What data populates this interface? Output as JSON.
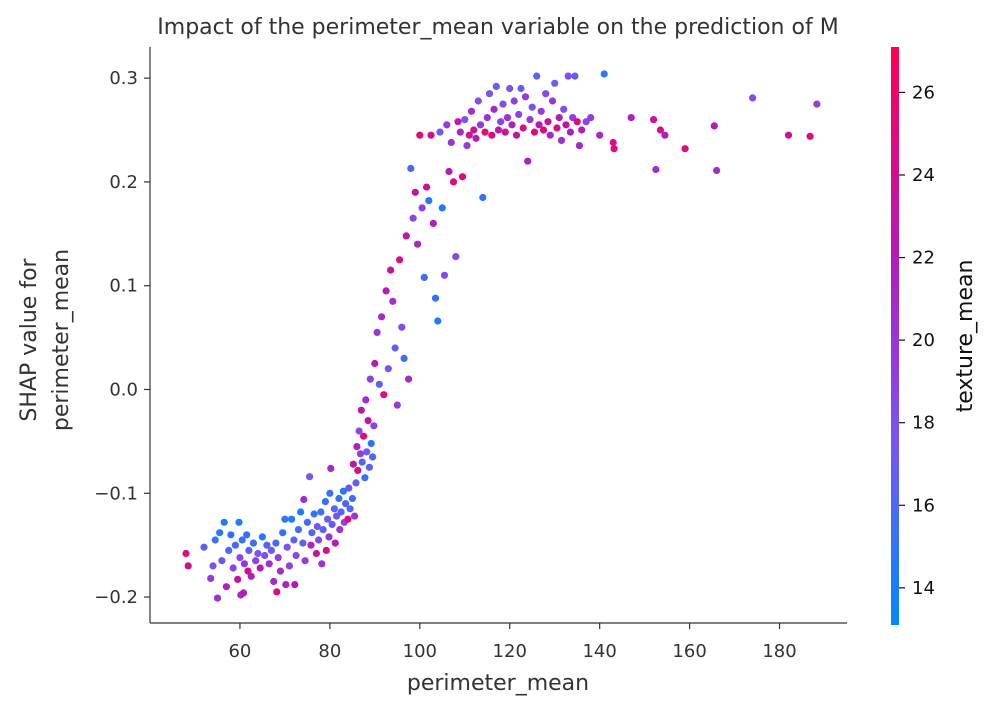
{
  "chart_data": {
    "type": "scatter",
    "title": "Impact of the perimeter_mean variable on the prediction of M",
    "xlabel": "perimeter_mean",
    "ylabel_lines": [
      "SHAP value for",
      "perimeter_mean"
    ],
    "xlim": [
      40,
      195
    ],
    "ylim": [
      -0.225,
      0.33
    ],
    "xticks": [
      60,
      80,
      100,
      120,
      140,
      160,
      180
    ],
    "xtick_labels": [
      "60",
      "80",
      "100",
      "120",
      "140",
      "160",
      "180"
    ],
    "yticks": [
      -0.2,
      -0.1,
      0.0,
      0.1,
      0.2,
      0.3
    ],
    "ytick_labels": [
      "−0.2",
      "−0.1",
      "0.0",
      "0.1",
      "0.2",
      "0.3"
    ],
    "grid": false,
    "colorbar": {
      "label": "texture_mean",
      "range": [
        13.1,
        27.1
      ],
      "ticks": [
        14,
        16,
        18,
        20,
        22,
        24,
        26
      ],
      "tick_labels": [
        "14",
        "16",
        "18",
        "20",
        "22",
        "24",
        "26"
      ],
      "colormap": [
        "#008afb",
        "#7c52f3",
        "#b818b4",
        "#ff0051"
      ]
    },
    "points": [
      [
        48.0,
        -0.158,
        24.8
      ],
      [
        48.5,
        -0.17,
        24.2
      ],
      [
        52.0,
        -0.152,
        16.5
      ],
      [
        53.5,
        -0.182,
        19.5
      ],
      [
        54.0,
        -0.17,
        17.8
      ],
      [
        54.5,
        -0.145,
        15.2
      ],
      [
        55.0,
        -0.201,
        20.2
      ],
      [
        55.5,
        -0.138,
        14.2
      ],
      [
        56.0,
        -0.165,
        17.0
      ],
      [
        56.5,
        -0.128,
        14.5
      ],
      [
        57.0,
        -0.19,
        21.5
      ],
      [
        57.5,
        -0.155,
        16.0
      ],
      [
        58.0,
        -0.14,
        14.8
      ],
      [
        58.5,
        -0.172,
        19.0
      ],
      [
        59.0,
        -0.15,
        15.6
      ],
      [
        59.5,
        -0.183,
        23.8
      ],
      [
        59.8,
        -0.128,
        13.9
      ],
      [
        60.0,
        -0.162,
        18.4
      ],
      [
        60.2,
        -0.198,
        21.0
      ],
      [
        60.5,
        -0.145,
        15.0
      ],
      [
        60.8,
        -0.196,
        22.0
      ],
      [
        61.0,
        -0.168,
        19.8
      ],
      [
        61.5,
        -0.14,
        15.5
      ],
      [
        61.8,
        -0.175,
        24.0
      ],
      [
        62.0,
        -0.155,
        16.8
      ],
      [
        62.5,
        -0.18,
        21.8
      ],
      [
        63.0,
        -0.148,
        15.2
      ],
      [
        63.5,
        -0.165,
        18.9
      ],
      [
        64.0,
        -0.158,
        17.5
      ],
      [
        64.5,
        -0.172,
        22.5
      ],
      [
        65.0,
        -0.142,
        14.6
      ],
      [
        65.5,
        -0.16,
        18.0
      ],
      [
        66.0,
        -0.15,
        16.2
      ],
      [
        66.5,
        -0.168,
        20.5
      ],
      [
        67.0,
        -0.155,
        17.2
      ],
      [
        67.5,
        -0.185,
        21.2
      ],
      [
        68.0,
        -0.148,
        15.8
      ],
      [
        68.2,
        -0.195,
        24.5
      ],
      [
        68.5,
        -0.162,
        19.2
      ],
      [
        69.0,
        -0.175,
        20.8
      ],
      [
        69.5,
        -0.138,
        14.8
      ],
      [
        70.0,
        -0.125,
        15.0
      ],
      [
        70.2,
        -0.188,
        21.6
      ],
      [
        70.5,
        -0.152,
        17.8
      ],
      [
        71.0,
        -0.17,
        19.0
      ],
      [
        71.5,
        -0.125,
        14.2
      ],
      [
        72.0,
        -0.145,
        16.5
      ],
      [
        72.2,
        -0.188,
        22.8
      ],
      [
        72.5,
        -0.16,
        18.6
      ],
      [
        73.0,
        -0.135,
        15.5
      ],
      [
        73.5,
        -0.118,
        14.0
      ],
      [
        74.0,
        -0.148,
        16.9
      ],
      [
        74.2,
        -0.106,
        20.6
      ],
      [
        74.5,
        -0.165,
        19.5
      ],
      [
        75.0,
        -0.128,
        15.7
      ],
      [
        75.5,
        -0.084,
        17.6
      ],
      [
        75.8,
        -0.15,
        21.4
      ],
      [
        76.0,
        -0.138,
        16.0
      ],
      [
        76.5,
        -0.12,
        14.8
      ],
      [
        77.0,
        -0.158,
        23.6
      ],
      [
        77.2,
        -0.132,
        17.0
      ],
      [
        77.5,
        -0.145,
        18.5
      ],
      [
        78.0,
        -0.118,
        15.3
      ],
      [
        78.2,
        -0.168,
        20.4
      ],
      [
        78.5,
        -0.135,
        16.6
      ],
      [
        79.0,
        -0.108,
        14.9
      ],
      [
        79.2,
        -0.155,
        24.2
      ],
      [
        79.5,
        -0.125,
        17.2
      ],
      [
        79.8,
        -0.142,
        19.9
      ],
      [
        80.0,
        -0.1,
        15.4
      ],
      [
        80.2,
        -0.076,
        21.0
      ],
      [
        80.5,
        -0.13,
        16.8
      ],
      [
        81.0,
        -0.115,
        15.9
      ],
      [
        81.2,
        -0.148,
        22.2
      ],
      [
        81.5,
        -0.122,
        17.6
      ],
      [
        82.0,
        -0.105,
        15.1
      ],
      [
        82.2,
        -0.135,
        20.2
      ],
      [
        82.5,
        -0.118,
        16.4
      ],
      [
        83.0,
        -0.098,
        14.7
      ],
      [
        83.2,
        -0.128,
        19.0
      ],
      [
        83.5,
        -0.11,
        15.8
      ],
      [
        84.0,
        -0.125,
        24.6
      ],
      [
        84.2,
        -0.095,
        17.1
      ],
      [
        84.5,
        -0.115,
        16.2
      ],
      [
        85.0,
        -0.105,
        15.5
      ],
      [
        85.2,
        -0.072,
        23.0
      ],
      [
        85.5,
        -0.122,
        20.0
      ],
      [
        85.8,
        -0.09,
        16.8
      ],
      [
        86.0,
        -0.055,
        21.8
      ],
      [
        86.2,
        -0.078,
        24.4
      ],
      [
        86.5,
        -0.04,
        18.2
      ],
      [
        86.8,
        -0.062,
        19.5
      ],
      [
        87.0,
        -0.02,
        22.6
      ],
      [
        87.2,
        -0.07,
        16.1
      ],
      [
        87.5,
        -0.045,
        25.2
      ],
      [
        87.8,
        -0.085,
        15.0
      ],
      [
        88.0,
        -0.01,
        20.8
      ],
      [
        88.2,
        -0.06,
        17.4
      ],
      [
        88.5,
        -0.03,
        23.2
      ],
      [
        88.8,
        -0.075,
        16.3
      ],
      [
        89.0,
        0.01,
        19.3
      ],
      [
        89.2,
        -0.052,
        14.5
      ],
      [
        89.5,
        -0.065,
        15.6
      ],
      [
        89.8,
        -0.035,
        18.8
      ],
      [
        90.0,
        0.025,
        22.4
      ],
      [
        90.5,
        0.055,
        19.8
      ],
      [
        91.0,
        0.005,
        16.9
      ],
      [
        91.5,
        0.07,
        21.1
      ],
      [
        92.0,
        -0.005,
        24.9
      ],
      [
        92.5,
        0.095,
        22.2
      ],
      [
        93.0,
        0.02,
        17.8
      ],
      [
        93.5,
        0.115,
        23.4
      ],
      [
        94.0,
        0.085,
        20.4
      ],
      [
        94.5,
        0.04,
        16.4
      ],
      [
        95.0,
        -0.015,
        19.7
      ],
      [
        95.5,
        0.125,
        24.7
      ],
      [
        96.0,
        0.06,
        18.1
      ],
      [
        96.5,
        0.03,
        15.2
      ],
      [
        97.0,
        0.148,
        22.9
      ],
      [
        97.5,
        0.01,
        20.9
      ],
      [
        98.0,
        0.213,
        16.0
      ],
      [
        98.5,
        0.165,
        18.7
      ],
      [
        99.0,
        0.19,
        24.1
      ],
      [
        99.5,
        0.14,
        21.5
      ],
      [
        100.0,
        0.245,
        25.3
      ],
      [
        100.5,
        0.175,
        19.4
      ],
      [
        101.0,
        0.108,
        15.3
      ],
      [
        101.5,
        0.195,
        23.7
      ],
      [
        102.0,
        0.182,
        14.6
      ],
      [
        102.5,
        0.245,
        24.3
      ],
      [
        103.0,
        0.16,
        21.9
      ],
      [
        103.5,
        0.088,
        15.1
      ],
      [
        104.0,
        0.066,
        14.4
      ],
      [
        104.5,
        0.248,
        17.3
      ],
      [
        105.0,
        0.175,
        14.2
      ],
      [
        105.5,
        0.11,
        18.3
      ],
      [
        106.0,
        0.255,
        19.2
      ],
      [
        106.5,
        0.21,
        22.3
      ],
      [
        107.0,
        0.238,
        20.1
      ],
      [
        107.5,
        0.2,
        24.8
      ],
      [
        108.0,
        0.128,
        18.6
      ],
      [
        108.5,
        0.258,
        22.7
      ],
      [
        109.0,
        0.248,
        21.3
      ],
      [
        109.5,
        0.205,
        25.5
      ],
      [
        110.0,
        0.26,
        17.9
      ],
      [
        110.5,
        0.235,
        19.6
      ],
      [
        111.0,
        0.245,
        23.3
      ],
      [
        111.5,
        0.268,
        20.6
      ],
      [
        112.0,
        0.25,
        24.0
      ],
      [
        112.5,
        0.242,
        22.1
      ],
      [
        113.0,
        0.278,
        18.0
      ],
      [
        113.5,
        0.255,
        19.9
      ],
      [
        114.0,
        0.185,
        14.9
      ],
      [
        114.5,
        0.248,
        25.1
      ],
      [
        115.0,
        0.262,
        20.3
      ],
      [
        115.5,
        0.285,
        17.5
      ],
      [
        116.0,
        0.245,
        24.5
      ],
      [
        116.5,
        0.27,
        21.4
      ],
      [
        117.0,
        0.292,
        16.7
      ],
      [
        117.5,
        0.25,
        22.6
      ],
      [
        118.0,
        0.258,
        19.1
      ],
      [
        118.5,
        0.275,
        18.5
      ],
      [
        119.0,
        0.248,
        23.9
      ],
      [
        119.5,
        0.262,
        20.7
      ],
      [
        120.0,
        0.29,
        17.6
      ],
      [
        120.5,
        0.255,
        21.7
      ],
      [
        121.0,
        0.278,
        19.3
      ],
      [
        121.5,
        0.245,
        22.8
      ],
      [
        122.0,
        0.265,
        18.9
      ],
      [
        122.5,
        0.29,
        16.8
      ],
      [
        123.0,
        0.252,
        24.4
      ],
      [
        123.5,
        0.282,
        20.0
      ],
      [
        124.0,
        0.22,
        21.6
      ],
      [
        124.5,
        0.26,
        19.7
      ],
      [
        125.0,
        0.272,
        17.7
      ],
      [
        125.5,
        0.248,
        24.9
      ],
      [
        126.0,
        0.302,
        16.2
      ],
      [
        126.5,
        0.255,
        22.4
      ],
      [
        127.0,
        0.268,
        19.5
      ],
      [
        127.5,
        0.25,
        25.6
      ],
      [
        128.0,
        0.285,
        18.4
      ],
      [
        128.5,
        0.258,
        23.1
      ],
      [
        129.0,
        0.245,
        21.2
      ],
      [
        129.5,
        0.278,
        19.9
      ],
      [
        130.0,
        0.295,
        17.2
      ],
      [
        130.5,
        0.252,
        24.6
      ],
      [
        131.0,
        0.262,
        22.0
      ],
      [
        131.5,
        0.24,
        20.5
      ],
      [
        132.0,
        0.27,
        18.2
      ],
      [
        132.5,
        0.255,
        23.5
      ],
      [
        133.0,
        0.302,
        17.9
      ],
      [
        133.5,
        0.248,
        21.8
      ],
      [
        134.0,
        0.262,
        19.2
      ],
      [
        134.5,
        0.302,
        16.4
      ],
      [
        135.0,
        0.258,
        25.0
      ],
      [
        135.5,
        0.235,
        20.9
      ],
      [
        136.0,
        0.25,
        22.5
      ],
      [
        137.0,
        0.258,
        18.6
      ],
      [
        138.0,
        0.262,
        19.4
      ],
      [
        140.0,
        0.245,
        21.0
      ],
      [
        141.0,
        0.304,
        15.0
      ],
      [
        143.0,
        0.238,
        24.2
      ],
      [
        143.2,
        0.232,
        25.3
      ],
      [
        147.0,
        0.262,
        21.6
      ],
      [
        152.0,
        0.26,
        23.8
      ],
      [
        152.5,
        0.212,
        20.6
      ],
      [
        153.5,
        0.25,
        24.4
      ],
      [
        154.5,
        0.245,
        22.2
      ],
      [
        159.0,
        0.232,
        25.0
      ],
      [
        165.5,
        0.254,
        22.4
      ],
      [
        166.0,
        0.211,
        21.0
      ],
      [
        174.0,
        0.281,
        18.3
      ],
      [
        182.0,
        0.245,
        24.0
      ],
      [
        186.8,
        0.244,
        25.2
      ],
      [
        188.3,
        0.275,
        19.4
      ]
    ]
  }
}
